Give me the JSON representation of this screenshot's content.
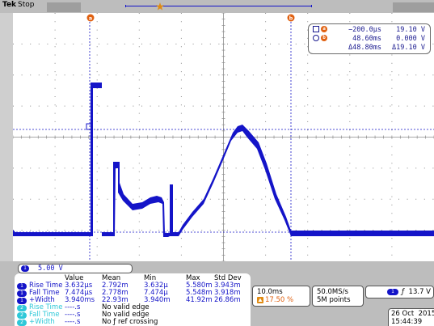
{
  "header": {
    "brand": "Tek",
    "status": "Stop"
  },
  "colors": {
    "ch1": "#1414c8",
    "ch2": "#2ec8d8",
    "cursor_marker": "#e06010",
    "grid": "#8c8c8c",
    "panel_bg": "#bdbdbd"
  },
  "icons": {
    "trigger_position": "star-icon",
    "cursor_a": "cursor-a-marker-icon",
    "cursor_b": "cursor-b-marker-icon",
    "ground_level": "ground-level-arrow-icon",
    "trigger_slope": "rising-edge-icon"
  },
  "cursors": {
    "a_marker": "a",
    "b_marker": "b",
    "a_time": "−200.0μs",
    "a_volt": "19.10 V",
    "b_time": "48.60ms",
    "b_volt": "0.000 V",
    "delta_time": "Δ48.80ms",
    "delta_volt": "Δ19.10 V"
  },
  "channel": {
    "number": "1",
    "scale": "5.00 V"
  },
  "measurements": {
    "headers": [
      "Value",
      "Mean",
      "Min",
      "Max",
      "Std Dev"
    ],
    "rows": [
      {
        "ch": "1",
        "name": "Rise Time",
        "value": "3.632μs",
        "mean": "2.792m",
        "min": "3.632μ",
        "max": "5.580m",
        "std": "3.943m"
      },
      {
        "ch": "1",
        "name": "Fall Time",
        "value": "7.474μs",
        "mean": "2.778m",
        "min": "7.474μ",
        "max": "5.548m",
        "std": "3.918m"
      },
      {
        "ch": "1",
        "name": "+Width",
        "value": "3.940ms",
        "mean": "22.93m",
        "min": "3.940m",
        "max": "41.92m",
        "std": "26.86m"
      },
      {
        "ch": "2",
        "name": "Rise Time",
        "value": "----.s",
        "note": "No valid edge"
      },
      {
        "ch": "2",
        "name": "Fall Time",
        "value": "----.s",
        "note": "No valid edge"
      },
      {
        "ch": "2",
        "name": "+Width",
        "value": "----.s",
        "note": "No ƒ ref crossing"
      }
    ]
  },
  "timebase": {
    "scale": "10.0ms",
    "position": "17.50 %",
    "sample_rate": "50.0MS/s",
    "record_length": "5M points"
  },
  "trigger": {
    "channel": "1",
    "slope_glyph": "ƒ",
    "level": "13.7 V"
  },
  "datetime": {
    "date": "26 Oct  2015",
    "time": "15:44:39"
  }
}
